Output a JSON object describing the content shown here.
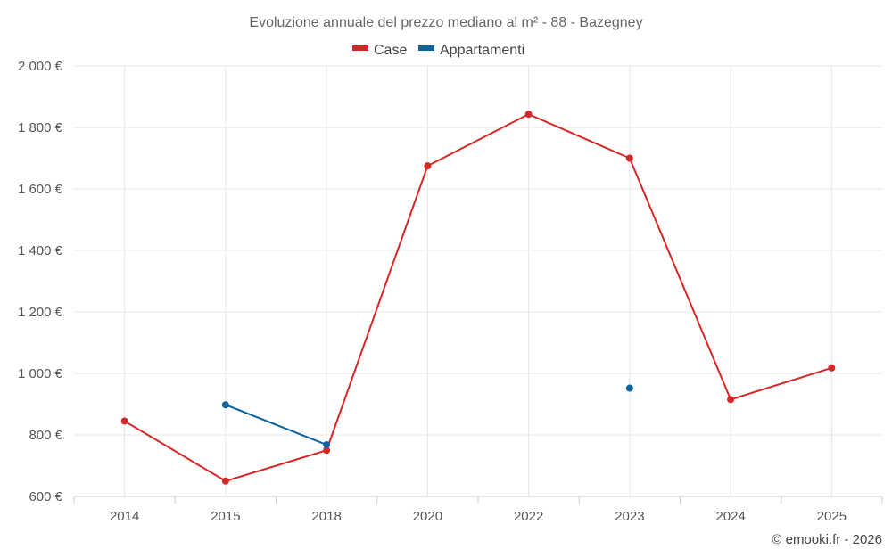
{
  "title": "Evoluzione annuale del prezzo mediano al m² - 88 - Bazegney",
  "credit": "© emooki.fr - 2026",
  "colors": {
    "case": "#d62728",
    "appartamenti": "#0b63a0"
  },
  "chart_data": {
    "type": "line",
    "title": "Evoluzione annuale del prezzo mediano al m² - 88 - Bazegney",
    "categories": [
      "2014",
      "2015",
      "2018",
      "2020",
      "2022",
      "2023",
      "2024",
      "2025"
    ],
    "y_tick_labels": [
      "600 €",
      "800 €",
      "1 000 €",
      "1 200 €",
      "1 400 €",
      "1 600 €",
      "1 800 €",
      "2 000 €"
    ],
    "y_ticks": [
      600,
      800,
      1000,
      1200,
      1400,
      1600,
      1800,
      2000
    ],
    "ylim": [
      600,
      2000
    ],
    "grid": true,
    "legend_position": "top-center",
    "series": [
      {
        "name": "Case",
        "color": "#d62728",
        "values": [
          845,
          650,
          750,
          1675,
          1843,
          1700,
          915,
          1018
        ]
      },
      {
        "name": "Appartamenti",
        "color": "#0b63a0",
        "values": [
          null,
          898,
          768,
          null,
          null,
          952,
          null,
          null
        ]
      }
    ]
  }
}
